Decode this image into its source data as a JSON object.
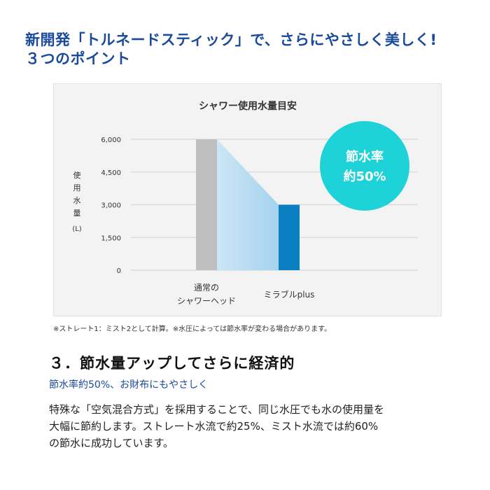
{
  "headline": {
    "line1": "新開発「トルネードスティック」で、さらにやさしく美しく!",
    "line2": "３つのポイント"
  },
  "chart_data": {
    "type": "bar",
    "title": "シャワー使用水量目安",
    "ylabel_chars": [
      "使",
      "用",
      "水",
      "量"
    ],
    "yunit": "(L)",
    "yticks": [
      0,
      1500,
      3000,
      4500,
      6000
    ],
    "ytick_labels": [
      "0",
      "1,500",
      "3,000",
      "4,500",
      "6,000"
    ],
    "ylim": [
      0,
      6000
    ],
    "grid": true,
    "categories": [
      {
        "lines": [
          "通常の",
          "シャワーヘッド"
        ]
      },
      {
        "lines": [
          "ミラブルplus"
        ]
      }
    ],
    "values": [
      6000,
      3000
    ],
    "colors": [
      "#bfbfbf",
      "#0a7fc2"
    ],
    "badge": {
      "line1": "節水率",
      "line2": "約50%",
      "color": "#1ed3d8"
    }
  },
  "footnote": "※ストレート1：ミスト2として計算。※水圧によっては節水率が変わる場合があります。",
  "section": {
    "title": "３．節水量アップしてさらに経済的",
    "subtitle": "節水率約50%、お財布にもやさしく",
    "body_lines": [
      "特殊な「空気混合方式」を採用することで、同じ水圧でも水の使用量を",
      "大幅に節約します。ストレート水流で約25%、ミスト水流では約60%",
      "の節水に成功しています。"
    ]
  }
}
